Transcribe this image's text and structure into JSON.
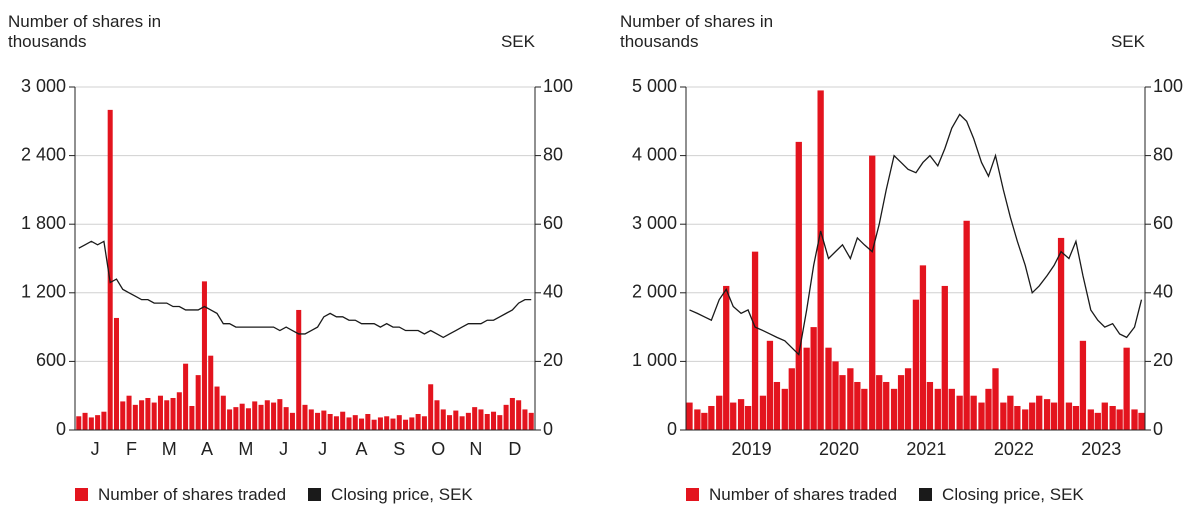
{
  "chart_data": [
    {
      "type": "bar_line",
      "y_label": "Number of shares in thousands",
      "y2_label": "SEK",
      "x": [
        3,
        8,
        13,
        18,
        23,
        28,
        33,
        38,
        43,
        48,
        53,
        58,
        63,
        68,
        73,
        78,
        83,
        88,
        93,
        98,
        103,
        108,
        113,
        118,
        123,
        128,
        133,
        138,
        143,
        148,
        153,
        158,
        163,
        168,
        173,
        178,
        183,
        188,
        193,
        198,
        203,
        208,
        213,
        218,
        223,
        228,
        233,
        238,
        243,
        248,
        253,
        258,
        263,
        268,
        273,
        278,
        283,
        288,
        293,
        298,
        303,
        308,
        313,
        318,
        323,
        328,
        333,
        338,
        343,
        348,
        353,
        358,
        363
      ],
      "xlim": [
        0,
        366
      ],
      "xticks": [
        {
          "value": 16,
          "label": "J"
        },
        {
          "value": 45,
          "label": "F"
        },
        {
          "value": 75,
          "label": "M"
        },
        {
          "value": 105,
          "label": "A"
        },
        {
          "value": 136,
          "label": "M"
        },
        {
          "value": 166,
          "label": "J"
        },
        {
          "value": 197,
          "label": "J"
        },
        {
          "value": 228,
          "label": "A"
        },
        {
          "value": 258,
          "label": "S"
        },
        {
          "value": 289,
          "label": "O"
        },
        {
          "value": 319,
          "label": "N"
        },
        {
          "value": 350,
          "label": "D"
        }
      ],
      "ylim": [
        0,
        3000
      ],
      "yticks": [
        0,
        600,
        {
          "value": 1200,
          "label": "1 200"
        },
        {
          "value": 1800,
          "label": "1 800"
        },
        {
          "value": 2400,
          "label": "2 400"
        },
        {
          "value": 3000,
          "label": "3 000"
        }
      ],
      "y2lim": [
        0,
        100
      ],
      "y2ticks": [
        0,
        20,
        40,
        60,
        80,
        100
      ],
      "grid": true,
      "series": [
        {
          "name": "Number of shares traded",
          "color": "#e3141e",
          "type": "bar",
          "values": [
            120,
            150,
            110,
            130,
            160,
            2800,
            980,
            250,
            300,
            220,
            260,
            280,
            240,
            300,
            260,
            280,
            330,
            580,
            210,
            480,
            1300,
            650,
            380,
            300,
            180,
            200,
            230,
            190,
            250,
            220,
            260,
            240,
            270,
            200,
            150,
            1050,
            220,
            180,
            150,
            170,
            140,
            120,
            160,
            110,
            130,
            100,
            140,
            90,
            110,
            120,
            100,
            130,
            90,
            110,
            140,
            120,
            400,
            260,
            180,
            130,
            170,
            120,
            150,
            200,
            180,
            140,
            160,
            130,
            220,
            280,
            260,
            180,
            150
          ]
        },
        {
          "name": "Closing price, SEK",
          "color": "#1a1a1a",
          "type": "line",
          "axis": "y2",
          "values": [
            53,
            54,
            55,
            54,
            55,
            43,
            44,
            41,
            40,
            39,
            38,
            38,
            37,
            37,
            37,
            36,
            36,
            35,
            35,
            35,
            36,
            35,
            34,
            31,
            31,
            30,
            30,
            30,
            30,
            30,
            30,
            30,
            29,
            30,
            29,
            28,
            28,
            29,
            30,
            33,
            34,
            33,
            33,
            32,
            32,
            31,
            31,
            31,
            30,
            31,
            30,
            30,
            29,
            29,
            29,
            28,
            29,
            28,
            27,
            28,
            29,
            30,
            31,
            31,
            31,
            32,
            32,
            33,
            34,
            35,
            37,
            38,
            38
          ]
        }
      ]
    },
    {
      "type": "bar_line",
      "y_label": "Number of shares in thousands",
      "y2_label": "SEK",
      "x": [
        2018.79,
        2018.88,
        2018.96,
        2019.04,
        2019.13,
        2019.21,
        2019.29,
        2019.38,
        2019.46,
        2019.54,
        2019.63,
        2019.71,
        2019.79,
        2019.88,
        2019.96,
        2020.04,
        2020.13,
        2020.21,
        2020.29,
        2020.38,
        2020.46,
        2020.54,
        2020.63,
        2020.71,
        2020.79,
        2020.88,
        2020.96,
        2021.04,
        2021.13,
        2021.21,
        2021.29,
        2021.38,
        2021.46,
        2021.54,
        2021.63,
        2021.71,
        2021.79,
        2021.88,
        2021.96,
        2022.04,
        2022.13,
        2022.21,
        2022.29,
        2022.38,
        2022.46,
        2022.54,
        2022.63,
        2022.71,
        2022.79,
        2022.88,
        2022.96,
        2023.04,
        2023.13,
        2023.21,
        2023.29,
        2023.38,
        2023.46,
        2023.54,
        2023.63,
        2023.71,
        2023.79,
        2023.88,
        2023.96
      ],
      "xlim": [
        2018.75,
        2024.0
      ],
      "xticks": [
        {
          "value": 2019.5,
          "label": "2019"
        },
        {
          "value": 2020.5,
          "label": "2020"
        },
        {
          "value": 2021.5,
          "label": "2021"
        },
        {
          "value": 2022.5,
          "label": "2022"
        },
        {
          "value": 2023.5,
          "label": "2023"
        }
      ],
      "ylim": [
        0,
        5000
      ],
      "yticks": [
        0,
        {
          "value": 1000,
          "label": "1 000"
        },
        {
          "value": 2000,
          "label": "2 000"
        },
        {
          "value": 3000,
          "label": "3 000"
        },
        {
          "value": 4000,
          "label": "4 000"
        },
        {
          "value": 5000,
          "label": "5 000"
        }
      ],
      "y2lim": [
        0,
        100
      ],
      "y2ticks": [
        0,
        20,
        40,
        60,
        80,
        100
      ],
      "grid": true,
      "series": [
        {
          "name": "Number of shares traded",
          "color": "#e3141e",
          "type": "bar",
          "values": [
            400,
            300,
            250,
            350,
            500,
            2100,
            400,
            450,
            350,
            2600,
            500,
            1300,
            700,
            600,
            900,
            4200,
            1200,
            1500,
            4950,
            1200,
            1000,
            800,
            900,
            700,
            600,
            4000,
            800,
            700,
            600,
            800,
            900,
            1900,
            2400,
            700,
            600,
            2100,
            600,
            500,
            3050,
            500,
            400,
            600,
            900,
            400,
            500,
            350,
            300,
            400,
            500,
            450,
            400,
            2800,
            400,
            350,
            1300,
            300,
            250,
            400,
            350,
            300,
            1200,
            300,
            250
          ]
        },
        {
          "name": "Closing price, SEK",
          "color": "#1a1a1a",
          "type": "line",
          "axis": "y2",
          "values": [
            35,
            34,
            33,
            32,
            38,
            41,
            36,
            34,
            35,
            30,
            29,
            28,
            27,
            26,
            24,
            22,
            35,
            48,
            58,
            50,
            52,
            54,
            50,
            56,
            54,
            52,
            60,
            70,
            80,
            78,
            76,
            75,
            78,
            80,
            77,
            82,
            88,
            92,
            90,
            85,
            78,
            74,
            80,
            70,
            62,
            55,
            48,
            40,
            42,
            45,
            48,
            52,
            50,
            55,
            45,
            35,
            32,
            30,
            31,
            28,
            27,
            30,
            38
          ]
        }
      ]
    }
  ]
}
